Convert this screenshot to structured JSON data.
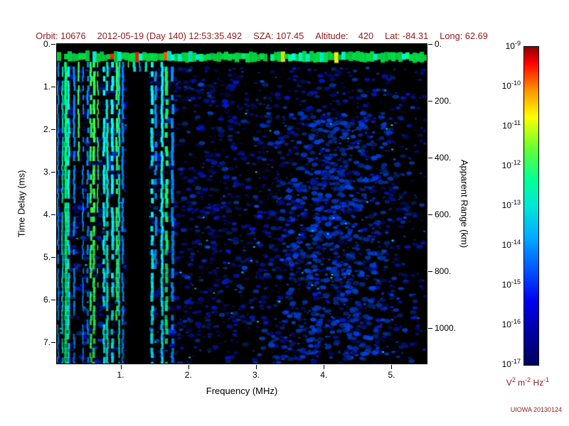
{
  "header": {
    "color": "#8b1a1a",
    "fields": [
      {
        "text": "Orbit: 10676"
      },
      {
        "text": "2012-05-19 (Day 140) 12:53:35.492"
      },
      {
        "text": "SZA: 107.45"
      },
      {
        "text": "Altitude:    420"
      },
      {
        "text": "Lat: -84.31"
      },
      {
        "text": "Long: 62.69"
      }
    ]
  },
  "chart_data": {
    "type": "heatmap",
    "title": "",
    "xlabel": "Frequency (MHz)",
    "ylabel_left": "Time Delay (ms)",
    "ylabel_right": "Apparent Range (km)",
    "x_range": [
      0.06,
      5.52
    ],
    "y_range": [
      0,
      7.5
    ],
    "y_right_range_km": [
      0,
      1125
    ],
    "x_ticks": {
      "values": [
        1,
        2,
        3,
        4,
        5
      ],
      "labels": [
        "1.",
        "2.",
        "3.",
        "4.",
        "5."
      ]
    },
    "y_ticks": {
      "values": [
        0,
        1,
        2,
        3,
        4,
        5,
        6,
        7
      ],
      "labels": [
        "0.",
        "1.",
        "2.",
        "3.",
        "4.",
        "5.",
        "6.",
        "7."
      ]
    },
    "y_right_ticks": {
      "values_km": [
        0,
        200,
        400,
        600,
        800,
        1000
      ],
      "labels": [
        "0.",
        "200.",
        "400.",
        "600.",
        "800.",
        "1000."
      ]
    },
    "colorbar": {
      "scale": "log",
      "tick_exponents": [
        "-9",
        "-10",
        "-11",
        "-12",
        "-13",
        "-14",
        "-15",
        "-16",
        "-17"
      ],
      "units": [
        {
          "base": "V",
          "exp": "2"
        },
        {
          "base": "m",
          "exp": "-2"
        },
        {
          "base": "Hz",
          "exp": "-1"
        }
      ],
      "stops": [
        {
          "pos": 0,
          "color": "#8c0000"
        },
        {
          "pos": 5,
          "color": "#ff0000"
        },
        {
          "pos": 14,
          "color": "#ff9900"
        },
        {
          "pos": 22,
          "color": "#ffff00"
        },
        {
          "pos": 32,
          "color": "#66ff33"
        },
        {
          "pos": 42,
          "color": "#00ff99"
        },
        {
          "pos": 50,
          "color": "#00e8d8"
        },
        {
          "pos": 60,
          "color": "#00aaff"
        },
        {
          "pos": 70,
          "color": "#0055ff"
        },
        {
          "pos": 80,
          "color": "#0000ee"
        },
        {
          "pos": 90,
          "color": "#0000a0"
        },
        {
          "pos": 100,
          "color": "#000060"
        }
      ]
    },
    "features": {
      "background": "#000000",
      "noise": {
        "count": 3000,
        "desc": "sparse faint dark-blue speckle over entire ionogram"
      },
      "bright_patch": {
        "count": 780,
        "f_center": 4.15,
        "d_min": 1.6,
        "d_max": 7.4,
        "desc": "brighter diffuse blue echo cluster near 3.5-5 MHz at long delays"
      },
      "cyan_dots": {
        "count": 60,
        "desc": "occasional brighter cyan-blue pixels"
      },
      "stripes": {
        "f_min": 0.06,
        "f_max": 1.78,
        "colors": [
          "#00ffff",
          "#00ff77",
          "#33ff55",
          "#00ccff",
          "#0090ff",
          "#00e8c0"
        ],
        "desc": "vertical green/cyan plasma-oscillation harmonic stripes below ~1.8 MHz"
      },
      "blackout": {
        "f_min": 1.09,
        "f_max": 1.42,
        "d_start": 0.65,
        "desc": "black data-gap column"
      },
      "surface_band": {
        "d_center": 0.3,
        "base_color": "#00dd44",
        "alt_color": "#00ffdd",
        "hot_colors": [
          "#ff2200",
          "#ff6600",
          "#ffee00"
        ],
        "desc": "strong horizontal first-echo band near zero delay with red/yellow hot spots"
      }
    }
  },
  "credit": "UIOWA 20130124"
}
